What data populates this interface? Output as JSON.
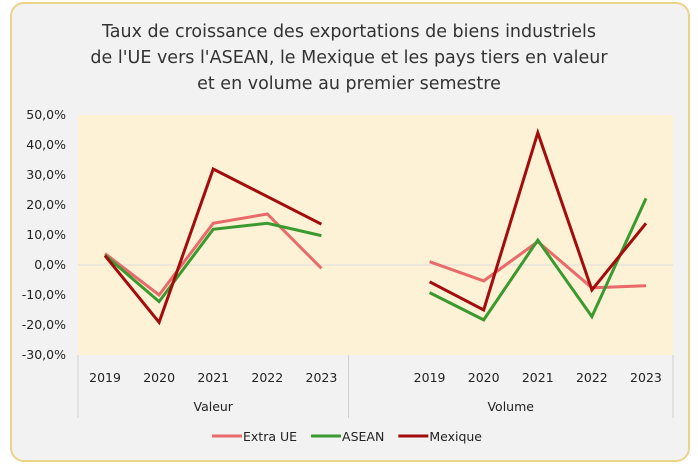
{
  "chart_data": {
    "type": "line",
    "title": [
      "Taux de croissance des exportations de biens industriels",
      "de l'UE vers l'ASEAN, le Mexique et les pays tiers en valeur",
      "et en volume au premier semestre"
    ],
    "groups": [
      {
        "label": "Valeur",
        "categories": [
          "2019",
          "2020",
          "2021",
          "2022",
          "2023"
        ]
      },
      {
        "label": "Volume",
        "categories": [
          "2019",
          "2020",
          "2021",
          "2022",
          "2023"
        ]
      }
    ],
    "ylim": [
      -30,
      50
    ],
    "yticks": [
      "50,0%",
      "40,0%",
      "30,0%",
      "20,0%",
      "10,0%",
      "0,0%",
      "-10,0%",
      "-20,0%",
      "-30,0%"
    ],
    "grid": "zero line only",
    "legend": "bottom",
    "series": [
      {
        "name": "Extra UE",
        "color": "#e96a6a",
        "values": [
          [
            3.8,
            -10.0,
            13.9,
            17.0,
            -1.1
          ],
          [
            1.1,
            -5.3,
            7.8,
            -7.6,
            -6.9
          ]
        ]
      },
      {
        "name": "ASEAN",
        "color": "#3a9a2f",
        "values": [
          [
            3.3,
            -12.2,
            11.9,
            13.9,
            9.8
          ],
          [
            -9.2,
            -18.3,
            8.3,
            -17.2,
            22.2
          ]
        ]
      },
      {
        "name": "Mexique",
        "color": "#a30c0c",
        "values": [
          [
            3.1,
            -19.1,
            32.0,
            22.8,
            13.6
          ],
          [
            -5.6,
            -15.0,
            44.1,
            -8.3,
            13.9
          ]
        ]
      }
    ],
    "plot_background": "#fdf2d6"
  }
}
